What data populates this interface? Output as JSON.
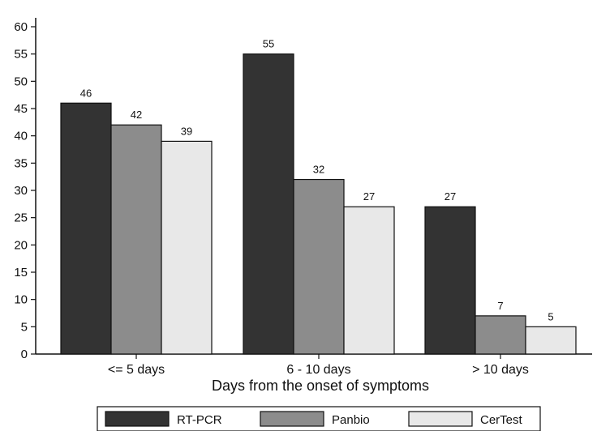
{
  "chart_data": {
    "type": "bar",
    "xlabel": "Days from the onset of symptoms",
    "ylabel": "",
    "ylim": [
      0,
      60
    ],
    "yticks": [
      0,
      5,
      10,
      15,
      20,
      25,
      30,
      35,
      40,
      45,
      50,
      55,
      60
    ],
    "grid": false,
    "legend_position": "bottom",
    "categories": [
      "<= 5 days",
      "6 - 10 days",
      "> 10 days"
    ],
    "series": [
      {
        "name": "RT-PCR",
        "color": "#333333",
        "values": [
          46,
          55,
          27
        ]
      },
      {
        "name": "Panbio",
        "color": "#8c8c8c",
        "values": [
          42,
          32,
          7
        ]
      },
      {
        "name": "CerTest",
        "color": "#e8e8e8",
        "values": [
          39,
          27,
          5
        ]
      }
    ]
  }
}
